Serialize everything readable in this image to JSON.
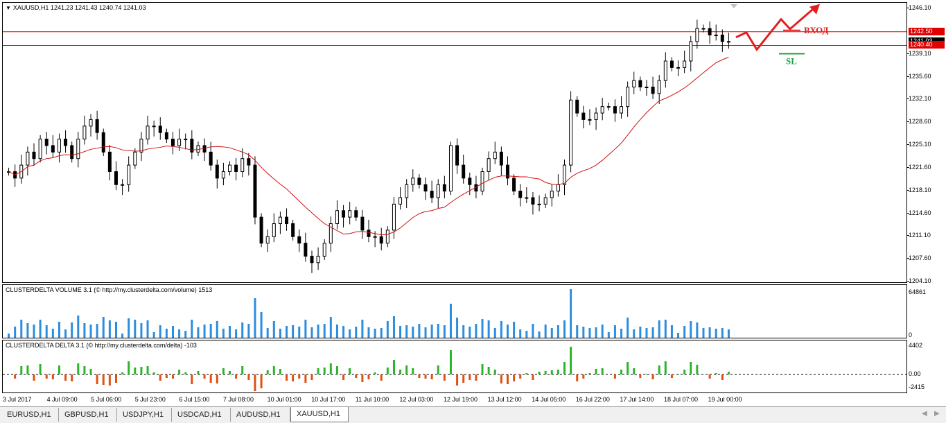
{
  "main_panel": {
    "title": "XAUUSD,H1  1241.23 1241.43 1240.74 1241.03",
    "price_ticks": [
      "1246.10",
      "1242.50",
      "1240.40",
      "1239.10",
      "1235.60",
      "1232.10",
      "1228.60",
      "1225.10",
      "1221.60",
      "1218.10",
      "1214.60",
      "1211.10",
      "1207.60",
      "1204.10"
    ],
    "badges": {
      "upper": "1242.50",
      "current": "1241.03",
      "lower": "1240.40"
    },
    "annotations": {
      "entry_label": "ВХОД",
      "sl_label": "SL"
    },
    "colors": {
      "level_lines": "#e00000",
      "moving_average": "#d01010",
      "annotation_red": "#e02020",
      "sl_green": "#22a040",
      "candles": "#000000"
    }
  },
  "volume_panel": {
    "title": "CLUSTERDELTA VOLUME 3.1 (© http://my.clusterdelta.com/volume) 1513",
    "ticks": [
      "64861",
      "0"
    ],
    "color": "#2a8de0"
  },
  "delta_panel": {
    "title": "CLUSTERDELTA DELTA 3.1 (© http://my.clusterdelta.com/delta) -103",
    "ticks": [
      "4402",
      "0.00",
      "-2415"
    ],
    "colors": {
      "positive": "#2bb52b",
      "negative": "#e05010"
    }
  },
  "time_axis": [
    "3 Jul 2017",
    "4 Jul 09:00",
    "5 Jul 06:00",
    "5 Jul 23:00",
    "6 Jul 15:00",
    "7 Jul 08:00",
    "10 Jul 01:00",
    "10 Jul 17:00",
    "11 Jul 10:00",
    "12 Jul 03:00",
    "12 Jul 19:00",
    "13 Jul 12:00",
    "14 Jul 05:00",
    "16 Jul 22:00",
    "17 Jul 14:00",
    "18 Jul 07:00",
    "19 Jul 00:00"
  ],
  "tabs": [
    {
      "label": "EURUSD,H1",
      "active": false
    },
    {
      "label": "GBPUSD,H1",
      "active": false
    },
    {
      "label": "USDJPY,H1",
      "active": false
    },
    {
      "label": "USDCAD,H1",
      "active": false
    },
    {
      "label": "AUDUSD,H1",
      "active": false
    },
    {
      "label": "XAUUSD,H1",
      "active": true
    }
  ],
  "chart_data": [
    {
      "type": "candlestick",
      "title": "XAUUSD,H1",
      "ylim": [
        1204.1,
        1246.1
      ],
      "open": 1241.23,
      "high": 1241.43,
      "low": 1240.74,
      "close": 1241.03,
      "horizontal_levels": [
        1242.5,
        1240.4
      ],
      "close_series_approx": [
        1221,
        1220,
        1222,
        1224,
        1223,
        1226,
        1225,
        1224,
        1226,
        1225,
        1223,
        1226,
        1228,
        1229,
        1227,
        1224,
        1221,
        1219,
        1219,
        1222,
        1224,
        1226,
        1228,
        1228,
        1227,
        1226,
        1225,
        1226,
        1226,
        1224,
        1225,
        1224,
        1222,
        1220,
        1221,
        1222,
        1221,
        1223,
        1222,
        1214,
        1210,
        1211,
        1213,
        1214,
        1213,
        1211,
        1210,
        1208,
        1207,
        1208,
        1210,
        1213,
        1215,
        1214,
        1215,
        1214,
        1212,
        1211,
        1211,
        1210,
        1212,
        1216,
        1217,
        1219,
        1220,
        1219,
        1218,
        1217,
        1219,
        1218,
        1225,
        1222,
        1220,
        1219,
        1218,
        1221,
        1223,
        1224,
        1222,
        1220,
        1218,
        1217,
        1217,
        1216,
        1216,
        1217,
        1218,
        1219,
        1222,
        1232,
        1230,
        1229,
        1229,
        1230,
        1231,
        1231,
        1230,
        1231,
        1234,
        1235,
        1234,
        1234,
        1233,
        1235,
        1238,
        1237,
        1237,
        1238,
        1241,
        1243,
        1243,
        1242,
        1242,
        1241,
        1241
      ]
    },
    {
      "type": "bar",
      "title": "CLUSTERDELTA VOLUME 3.1",
      "ylim": [
        0,
        64861
      ]
    },
    {
      "type": "bar",
      "title": "CLUSTERDELTA DELTA 3.1",
      "ylim": [
        -2415,
        4402
      ]
    }
  ]
}
